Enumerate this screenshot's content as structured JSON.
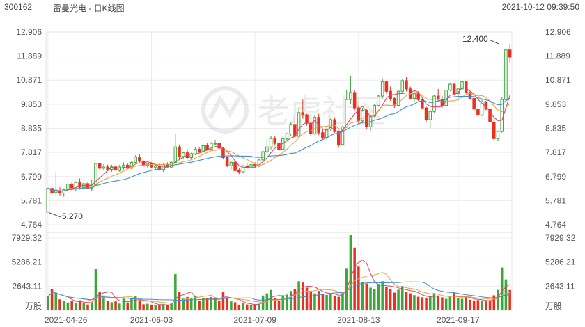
{
  "header": {
    "code": "300162",
    "title": "雷曼光电 - 日K线图",
    "datetime": "2021-10-12 09:39:50"
  },
  "watermark": {
    "text": "老虎社区"
  },
  "chart_data": [
    {
      "type": "candlestick",
      "y_ticks": [
        "12.906",
        "11.889",
        "10.871",
        "9.853",
        "8.835",
        "7.817",
        "6.799",
        "5.781",
        "4.764"
      ],
      "ylim": [
        4.764,
        12.906
      ],
      "x_ticks": [
        {
          "index": 0,
          "label": "2021-04-26"
        },
        {
          "index": 26,
          "label": "2021-06-03"
        },
        {
          "index": 52,
          "label": "2021-07-09"
        },
        {
          "index": 78,
          "label": "2021-08-13"
        },
        {
          "index": 103,
          "label": "2021-09-17"
        }
      ],
      "annotations": [
        {
          "label": "12.400",
          "index": 114,
          "value": 12.4
        },
        {
          "label": "5.270",
          "index": 0,
          "value": 5.27
        }
      ],
      "colors": {
        "up": "#3aa83a",
        "down": "#e8321f",
        "ma5": "#dd4466",
        "ma10": "#f0a040",
        "ma20": "#3b8fd6"
      },
      "ohlc": [
        [
          5.3,
          6.32,
          5.27,
          6.31
        ],
        [
          6.3,
          6.4,
          6.01,
          6.1
        ],
        [
          6.12,
          6.98,
          6.01,
          6.23
        ],
        [
          6.2,
          6.35,
          6.0,
          6.1
        ],
        [
          6.1,
          6.3,
          5.95,
          6.25
        ],
        [
          6.25,
          6.55,
          6.12,
          6.48
        ],
        [
          6.48,
          6.56,
          6.22,
          6.32
        ],
        [
          6.3,
          6.6,
          6.2,
          6.55
        ],
        [
          6.55,
          6.72,
          6.25,
          6.35
        ],
        [
          6.35,
          6.55,
          6.25,
          6.5
        ],
        [
          6.5,
          6.56,
          6.25,
          6.3
        ],
        [
          6.3,
          6.68,
          6.2,
          6.45
        ],
        [
          6.45,
          7.38,
          6.4,
          7.35
        ],
        [
          7.35,
          7.38,
          7.05,
          7.15
        ],
        [
          7.15,
          7.32,
          7.05,
          7.2
        ],
        [
          7.2,
          7.3,
          7.02,
          7.1
        ],
        [
          7.1,
          7.3,
          7.0,
          7.21
        ],
        [
          7.21,
          7.25,
          7.04,
          7.07
        ],
        [
          7.05,
          7.3,
          7.0,
          7.2
        ],
        [
          7.2,
          7.4,
          7.1,
          7.28
        ],
        [
          7.28,
          7.35,
          7.1,
          7.15
        ],
        [
          7.15,
          7.45,
          7.1,
          7.4
        ],
        [
          7.4,
          7.7,
          7.35,
          7.62
        ],
        [
          7.6,
          7.75,
          7.4,
          7.45
        ],
        [
          7.45,
          7.48,
          7.22,
          7.28
        ],
        [
          7.28,
          7.38,
          7.18,
          7.35
        ],
        [
          7.35,
          7.4,
          7.15,
          7.2
        ],
        [
          7.2,
          7.3,
          7.1,
          7.25
        ],
        [
          7.25,
          7.35,
          7.05,
          7.1
        ],
        [
          7.1,
          7.35,
          7.0,
          7.3
        ],
        [
          7.3,
          7.4,
          7.15,
          7.2
        ],
        [
          7.2,
          7.45,
          7.15,
          7.4
        ],
        [
          7.4,
          8.58,
          7.35,
          8.05
        ],
        [
          8.05,
          8.15,
          7.55,
          7.65
        ],
        [
          7.65,
          7.85,
          7.55,
          7.8
        ],
        [
          7.8,
          7.95,
          7.55,
          7.6
        ],
        [
          7.6,
          7.8,
          7.5,
          7.75
        ],
        [
          7.75,
          8.05,
          7.7,
          7.95
        ],
        [
          7.95,
          8.05,
          7.78,
          7.85
        ],
        [
          7.85,
          8.15,
          7.8,
          8.1
        ],
        [
          8.1,
          8.2,
          7.9,
          7.95
        ],
        [
          7.95,
          8.25,
          7.9,
          8.2
        ],
        [
          8.2,
          8.35,
          8.1,
          8.2
        ],
        [
          8.2,
          8.22,
          7.98,
          8.0
        ],
        [
          7.98,
          8.05,
          7.55,
          7.6
        ],
        [
          7.6,
          7.65,
          7.2,
          7.25
        ],
        [
          7.25,
          7.45,
          7.1,
          7.4
        ],
        [
          7.4,
          7.45,
          7.0,
          7.05
        ],
        [
          7.05,
          7.15,
          6.9,
          7.0
        ],
        [
          7.0,
          7.3,
          6.95,
          7.25
        ],
        [
          7.25,
          7.35,
          7.15,
          7.2
        ],
        [
          7.2,
          7.35,
          7.1,
          7.3
        ],
        [
          7.3,
          7.4,
          7.15,
          7.25
        ],
        [
          7.25,
          7.55,
          7.2,
          7.5
        ],
        [
          7.5,
          7.9,
          7.45,
          7.85
        ],
        [
          7.85,
          8.45,
          7.8,
          8.05
        ],
        [
          8.05,
          8.5,
          7.95,
          8.4
        ],
        [
          8.4,
          8.5,
          8.1,
          8.2
        ],
        [
          8.2,
          8.25,
          7.9,
          7.95
        ],
        [
          7.95,
          8.5,
          7.9,
          8.4
        ],
        [
          8.4,
          8.65,
          8.3,
          8.6
        ],
        [
          8.6,
          9.1,
          8.5,
          9.0
        ],
        [
          9.0,
          9.3,
          8.4,
          8.5
        ],
        [
          8.5,
          9.7,
          8.45,
          9.5
        ],
        [
          9.5,
          10.05,
          9.25,
          9.4
        ],
        [
          9.4,
          9.45,
          8.95,
          9.05
        ],
        [
          9.05,
          9.1,
          8.5,
          8.6
        ],
        [
          8.6,
          9.4,
          8.55,
          9.3
        ],
        [
          9.3,
          9.45,
          8.55,
          8.65
        ],
        [
          8.65,
          8.8,
          8.35,
          8.45
        ],
        [
          8.45,
          8.85,
          8.35,
          8.8
        ],
        [
          8.8,
          9.25,
          8.7,
          9.2
        ],
        [
          9.2,
          9.3,
          8.65,
          8.7
        ],
        [
          8.7,
          8.75,
          8.05,
          8.15
        ],
        [
          8.15,
          8.95,
          8.1,
          8.9
        ],
        [
          8.9,
          10.45,
          8.85,
          10.05
        ],
        [
          10.05,
          11.05,
          9.85,
          10.35
        ],
        [
          10.35,
          10.45,
          9.6,
          9.7
        ],
        [
          9.7,
          9.8,
          9.05,
          9.15
        ],
        [
          9.15,
          9.7,
          9.05,
          9.6
        ],
        [
          9.6,
          9.65,
          8.8,
          8.9
        ],
        [
          8.9,
          9.4,
          8.7,
          9.35
        ],
        [
          9.35,
          9.85,
          9.3,
          9.8
        ],
        [
          9.8,
          10.25,
          9.75,
          10.2
        ],
        [
          10.2,
          10.95,
          10.1,
          10.8
        ],
        [
          10.8,
          10.85,
          10.3,
          10.4
        ],
        [
          10.4,
          10.6,
          10.0,
          10.1
        ],
        [
          10.1,
          10.15,
          9.7,
          9.8
        ],
        [
          9.8,
          10.45,
          9.75,
          10.4
        ],
        [
          10.4,
          10.9,
          10.3,
          10.85
        ],
        [
          10.85,
          11.0,
          10.4,
          10.5
        ],
        [
          10.5,
          10.6,
          10.05,
          10.1
        ],
        [
          10.1,
          10.35,
          9.95,
          10.3
        ],
        [
          10.3,
          10.4,
          10.0,
          10.05
        ],
        [
          10.05,
          10.1,
          9.65,
          9.7
        ],
        [
          9.7,
          9.75,
          9.1,
          9.2
        ],
        [
          9.2,
          9.6,
          8.85,
          9.55
        ],
        [
          9.55,
          10.25,
          9.5,
          10.2
        ],
        [
          10.2,
          10.5,
          9.95,
          10.05
        ],
        [
          10.05,
          10.2,
          9.7,
          9.8
        ],
        [
          9.8,
          10.5,
          9.75,
          10.45
        ],
        [
          10.45,
          10.75,
          10.4,
          10.7
        ],
        [
          10.7,
          10.75,
          10.25,
          10.3
        ],
        [
          10.3,
          10.55,
          10.0,
          10.5
        ],
        [
          10.5,
          10.9,
          10.45,
          10.8
        ],
        [
          10.8,
          10.85,
          10.3,
          10.35
        ],
        [
          10.35,
          10.4,
          10.05,
          10.1
        ],
        [
          10.1,
          10.15,
          9.6,
          9.65
        ],
        [
          9.65,
          9.8,
          9.3,
          9.4
        ],
        [
          9.4,
          10.05,
          9.35,
          9.95
        ],
        [
          9.95,
          10.0,
          9.6,
          9.65
        ],
        [
          9.65,
          9.7,
          9.05,
          9.1
        ],
        [
          9.1,
          9.2,
          8.35,
          8.4
        ],
        [
          8.4,
          8.75,
          8.3,
          8.7
        ],
        [
          8.7,
          10.15,
          8.65,
          10.05
        ],
        [
          10.05,
          12.2,
          9.95,
          12.15
        ],
        [
          12.15,
          12.4,
          11.6,
          11.85
        ]
      ]
    },
    {
      "type": "bar",
      "title": "volume",
      "unit": "万股",
      "y_ticks": [
        "7929.32",
        "5286.21",
        "2643.11"
      ],
      "ylim": [
        0,
        7929.32
      ],
      "values": [
        1520,
        2350,
        1880,
        1200,
        1040,
        860,
        1020,
        780,
        1100,
        760,
        640,
        820,
        4520,
        1980,
        1620,
        1040,
        880,
        980,
        740,
        1280,
        860,
        1260,
        1520,
        1120,
        660,
        720,
        620,
        580,
        540,
        660,
        560,
        720,
        3960,
        1980,
        1280,
        1460,
        1320,
        1520,
        1040,
        1320,
        1260,
        1460,
        1380,
        1080,
        1980,
        1440,
        980,
        880,
        620,
        760,
        640,
        620,
        580,
        720,
        1620,
        1860,
        2230,
        1320,
        1060,
        1540,
        1720,
        2120,
        2340,
        3180,
        3040,
        2480,
        2130,
        1860,
        2120,
        1740,
        1680,
        1840,
        1580,
        1480,
        1860,
        4620,
        8230,
        6880,
        4780,
        3120,
        2930,
        2480,
        2340,
        2880,
        3180,
        2520,
        2360,
        1940,
        2260,
        2650,
        2060,
        1860,
        1660,
        1480,
        1420,
        1320,
        1560,
        1880,
        1620,
        1420,
        1260,
        1480,
        1920,
        1320,
        1260,
        1420,
        1160,
        1080,
        1120,
        1060,
        980,
        1020,
        1640,
        2240,
        4680,
        3380,
        2230
      ]
    }
  ]
}
